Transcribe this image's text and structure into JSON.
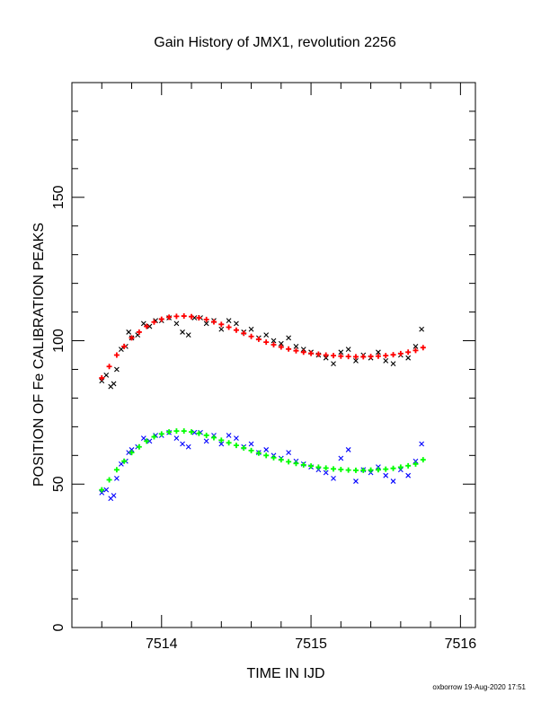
{
  "chart_data": {
    "type": "scatter",
    "title": "Gain History of JMX1, revolution 2256",
    "xlabel": "TIME IN IJD",
    "ylabel": "POSITION OF Fe CALIBRATION PEAKS",
    "xlim": [
      7513.4,
      7516.1
    ],
    "ylim": [
      0,
      190
    ],
    "xticks": [
      7514,
      7515,
      7516
    ],
    "xtick_labels": [
      "7514",
      "7515",
      "7516"
    ],
    "yticks": [
      0,
      50,
      100,
      150
    ],
    "ytick_labels": [
      "0",
      "50",
      "100",
      "150"
    ],
    "grid": false,
    "legend": "none",
    "footer": "oxborrow 19-Aug-2020 17:51",
    "series": [
      {
        "marker": "x",
        "color": "#000000",
        "x": [
          7513.6,
          7513.63,
          7513.66,
          7513.68,
          7513.7,
          7513.73,
          7513.76,
          7513.78,
          7513.8,
          7513.84,
          7513.88,
          7513.92,
          7513.96,
          7514.0,
          7514.05,
          7514.1,
          7514.14,
          7514.18,
          7514.22,
          7514.26,
          7514.3,
          7514.35,
          7514.4,
          7514.45,
          7514.5,
          7514.55,
          7514.6,
          7514.65,
          7514.7,
          7514.75,
          7514.8,
          7514.85,
          7514.9,
          7514.95,
          7515.0,
          7515.05,
          7515.1,
          7515.15,
          7515.2,
          7515.25,
          7515.3,
          7515.35,
          7515.4,
          7515.45,
          7515.5,
          7515.55,
          7515.6,
          7515.65,
          7515.7,
          7515.74
        ],
        "y": [
          86,
          88,
          84,
          85,
          90,
          97,
          98,
          103,
          101,
          102,
          106,
          105,
          107,
          107,
          108,
          106,
          103,
          102,
          108,
          108,
          106,
          107,
          104,
          107,
          106,
          103,
          104,
          101,
          102,
          100,
          99,
          101,
          98,
          97,
          96,
          95,
          94,
          92,
          96,
          97,
          93,
          95,
          94,
          96,
          93,
          92,
          95,
          94,
          98,
          104
        ]
      },
      {
        "marker": "+",
        "color": "#ff0000",
        "x": [
          7513.6,
          7513.65,
          7513.7,
          7513.75,
          7513.8,
          7513.85,
          7513.9,
          7513.95,
          7514.0,
          7514.05,
          7514.1,
          7514.15,
          7514.2,
          7514.25,
          7514.3,
          7514.35,
          7514.4,
          7514.45,
          7514.5,
          7514.55,
          7514.6,
          7514.65,
          7514.7,
          7514.75,
          7514.8,
          7514.85,
          7514.9,
          7514.95,
          7515.0,
          7515.05,
          7515.1,
          7515.15,
          7515.2,
          7515.25,
          7515.3,
          7515.35,
          7515.4,
          7515.45,
          7515.5,
          7515.55,
          7515.6,
          7515.65,
          7515.7,
          7515.75
        ],
        "y": [
          87,
          91,
          95,
          98,
          101,
          103,
          105,
          106.5,
          107.5,
          108.2,
          108.5,
          108.6,
          108.4,
          108.0,
          107.4,
          106.6,
          105.7,
          104.7,
          103.7,
          102.6,
          101.5,
          100.5,
          99.5,
          98.6,
          97.8,
          97.1,
          96.5,
          96.0,
          95.6,
          95.3,
          95.0,
          94.8,
          94.6,
          94.5,
          94.4,
          94.4,
          94.5,
          94.6,
          94.8,
          95.1,
          95.5,
          96.0,
          96.6,
          97.6
        ]
      },
      {
        "marker": "x",
        "color": "#0000ff",
        "x": [
          7513.6,
          7513.63,
          7513.66,
          7513.68,
          7513.7,
          7513.73,
          7513.76,
          7513.78,
          7513.8,
          7513.84,
          7513.88,
          7513.92,
          7513.96,
          7514.0,
          7514.05,
          7514.1,
          7514.14,
          7514.18,
          7514.22,
          7514.26,
          7514.3,
          7514.35,
          7514.4,
          7514.45,
          7514.5,
          7514.55,
          7514.6,
          7514.65,
          7514.7,
          7514.75,
          7514.8,
          7514.85,
          7514.9,
          7514.95,
          7515.0,
          7515.05,
          7515.1,
          7515.15,
          7515.2,
          7515.25,
          7515.3,
          7515.35,
          7515.4,
          7515.45,
          7515.5,
          7515.55,
          7515.6,
          7515.65,
          7515.7,
          7515.74
        ],
        "y": [
          47,
          48,
          45,
          46,
          52,
          57,
          58,
          61,
          62,
          63,
          66,
          65,
          67,
          67,
          68,
          66,
          64,
          63,
          68,
          68,
          65,
          67,
          64,
          67,
          66,
          63,
          64,
          61,
          62,
          60,
          59,
          61,
          58,
          57,
          56,
          55,
          54,
          52,
          59,
          62,
          51,
          55,
          54,
          56,
          53,
          51,
          55,
          53,
          58,
          64
        ]
      },
      {
        "marker": "+",
        "color": "#00ff00",
        "x": [
          7513.6,
          7513.65,
          7513.7,
          7513.75,
          7513.8,
          7513.85,
          7513.9,
          7513.95,
          7514.0,
          7514.05,
          7514.1,
          7514.15,
          7514.2,
          7514.25,
          7514.3,
          7514.35,
          7514.4,
          7514.45,
          7514.5,
          7514.55,
          7514.6,
          7514.65,
          7514.7,
          7514.75,
          7514.8,
          7514.85,
          7514.9,
          7514.95,
          7515.0,
          7515.05,
          7515.1,
          7515.15,
          7515.2,
          7515.25,
          7515.3,
          7515.35,
          7515.4,
          7515.45,
          7515.5,
          7515.55,
          7515.6,
          7515.65,
          7515.7,
          7515.75
        ],
        "y": [
          48,
          51.5,
          55,
          58,
          61,
          63,
          65,
          66.5,
          67.5,
          68.2,
          68.5,
          68.5,
          68.2,
          67.7,
          67.0,
          66.2,
          65.3,
          64.4,
          63.5,
          62.6,
          61.7,
          60.8,
          60.0,
          59.2,
          58.5,
          57.8,
          57.2,
          56.7,
          56.3,
          55.9,
          55.6,
          55.3,
          55.1,
          54.9,
          54.8,
          54.8,
          54.9,
          55.0,
          55.2,
          55.5,
          55.9,
          56.4,
          57.0,
          58.5
        ]
      }
    ]
  }
}
